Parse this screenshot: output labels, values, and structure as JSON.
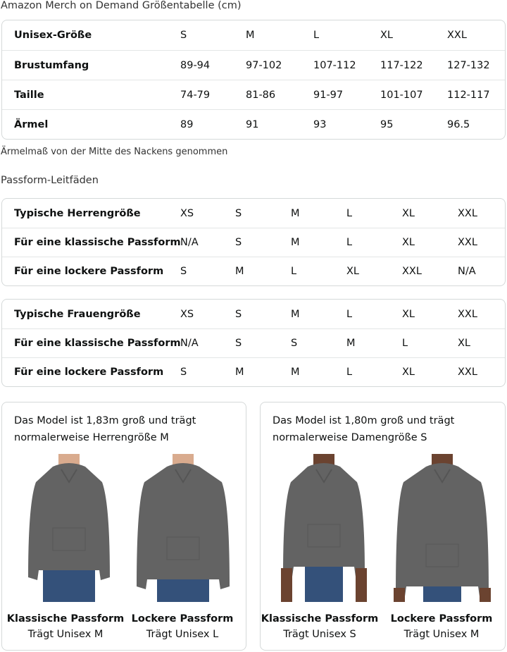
{
  "title": "Amazon Merch on Demand Größentabelle (cm)",
  "size_table": {
    "rows": [
      [
        "Unisex-Größe",
        "S",
        "M",
        "L",
        "XL",
        "XXL"
      ],
      [
        "Brustumfang",
        "89-94",
        "97-102",
        "107-112",
        "117-122",
        "127-132"
      ],
      [
        "Taille",
        "74-79",
        "81-86",
        "91-97",
        "101-107",
        "112-117"
      ],
      [
        "Ärmel",
        "89",
        "91",
        "93",
        "95",
        "96.5"
      ]
    ]
  },
  "note": "Ärmelmaß von der Mitte des Nackens genommen",
  "fit_title": "Passform-Leitfäden",
  "men_table": {
    "rows": [
      [
        "Typische Herrengröße",
        "XS",
        "S",
        "M",
        "L",
        "XL",
        "XXL"
      ],
      [
        "Für eine klassische Passform",
        "N/A",
        "S",
        "M",
        "L",
        "XL",
        "XXL"
      ],
      [
        "Für eine lockere Passform",
        "S",
        "M",
        "L",
        "XL",
        "XXL",
        "N/A"
      ]
    ]
  },
  "women_table": {
    "rows": [
      [
        "Typische Frauengröße",
        "XS",
        "S",
        "M",
        "L",
        "XL",
        "XXL"
      ],
      [
        "Für eine klassische Passform",
        "N/A",
        "S",
        "S",
        "M",
        "L",
        "XL"
      ],
      [
        "Für eine lockere Passform",
        "S",
        "M",
        "M",
        "L",
        "XL",
        "XXL"
      ]
    ]
  },
  "cards": [
    {
      "desc1": "Das Model ist 1,83m groß und trägt",
      "desc2": "normalerweise Herrengröße M",
      "fits": [
        {
          "title": "Klassische Passform",
          "sub": "Trägt Unisex M"
        },
        {
          "title": "Lockere Passform",
          "sub": "Trägt Unisex L"
        }
      ]
    },
    {
      "desc1": "Das Model ist 1,80m groß und trägt",
      "desc2": "normalerweise Damengröße S",
      "fits": [
        {
          "title": "Klassische Passform",
          "sub": "Trägt Unisex S"
        },
        {
          "title": "Lockere Passform",
          "sub": "Trägt Unisex M"
        }
      ]
    }
  ],
  "colors": {
    "hoodie": "#636363",
    "jeans": "#34517a",
    "skin_m": "#d9ab8e",
    "skin_w": "#6b4330",
    "border": "#d5d9d9"
  }
}
